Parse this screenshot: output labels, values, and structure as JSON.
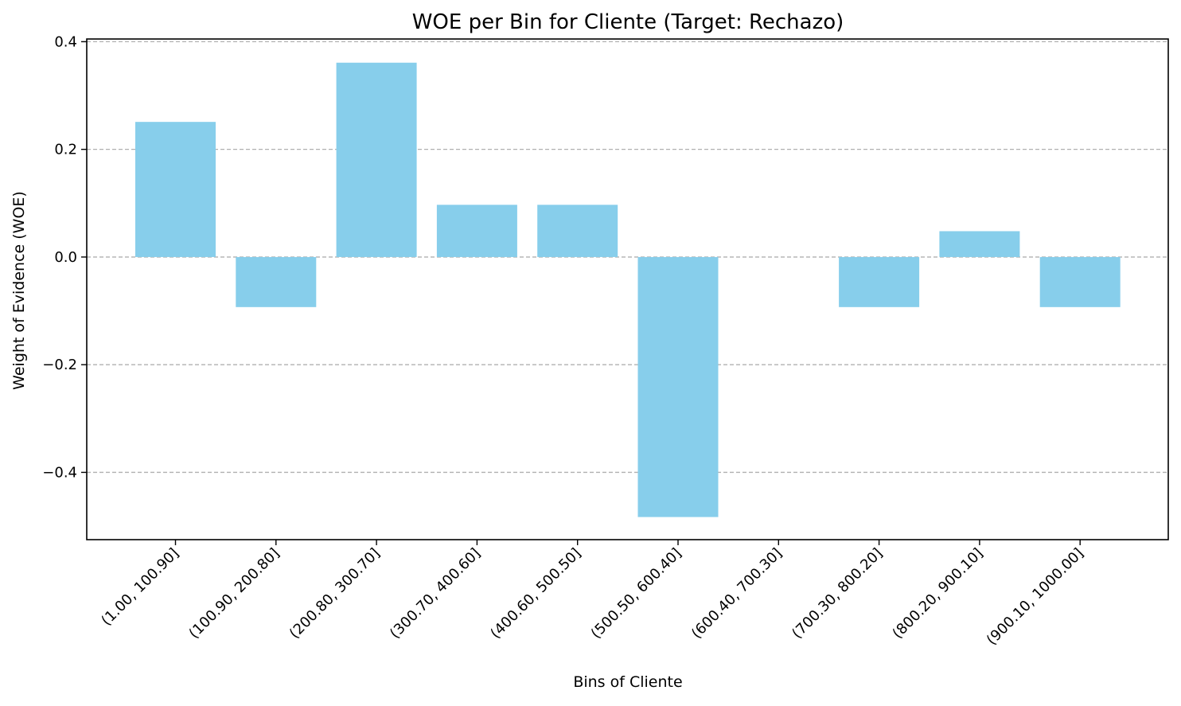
{
  "chart_data": {
    "type": "bar",
    "title": "WOE per Bin for Cliente (Target: Rechazo)",
    "xlabel": "Bins of Cliente",
    "ylabel": "Weight of Evidence (WOE)",
    "categories": [
      "(1.00, 100.90]",
      "(100.90, 200.80]",
      "(200.80, 300.70]",
      "(300.70, 400.60]",
      "(400.60, 500.50]",
      "(500.50, 600.40]",
      "(600.40, 700.30]",
      "(700.30, 800.20]",
      "(800.20, 900.10]",
      "(900.10, 1000.00]"
    ],
    "values": [
      0.251,
      -0.093,
      0.361,
      0.097,
      0.097,
      -0.483,
      0.0,
      -0.093,
      0.048,
      -0.093
    ],
    "ylim": [
      -0.525,
      0.405
    ],
    "yticks": [
      0.4,
      0.2,
      0.0,
      -0.2,
      -0.4
    ],
    "ytick_labels": [
      "0.4",
      "0.2",
      "0.0",
      "−0.2",
      "−0.4"
    ],
    "grid": "y-dashed",
    "bar_color": "#87ceeb",
    "grid_color": "#b0b0b0",
    "legend": "none"
  }
}
